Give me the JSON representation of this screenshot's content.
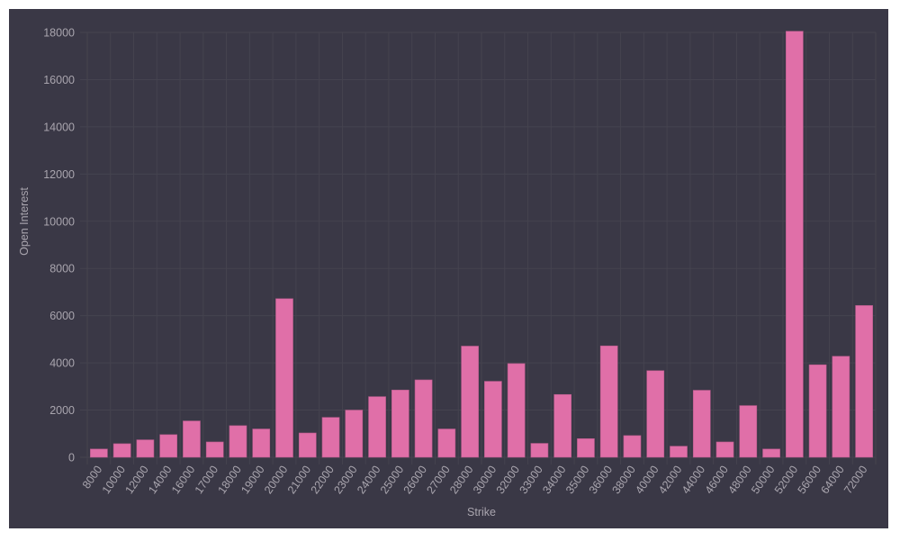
{
  "chart_data": {
    "type": "bar",
    "title": "",
    "xlabel": "Strike",
    "ylabel": "Open Interest",
    "ylim": [
      0,
      18000
    ],
    "yticks": [
      0,
      2000,
      4000,
      6000,
      8000,
      10000,
      12000,
      14000,
      16000,
      18000
    ],
    "grid": true,
    "legend": null,
    "categories": [
      "8000",
      "10000",
      "12000",
      "14000",
      "16000",
      "17000",
      "18000",
      "19000",
      "20000",
      "21000",
      "22000",
      "23000",
      "24000",
      "25000",
      "26000",
      "27000",
      "28000",
      "30000",
      "32000",
      "33000",
      "34000",
      "35000",
      "36000",
      "38000",
      "40000",
      "42000",
      "44000",
      "46000",
      "48000",
      "50000",
      "52000",
      "56000",
      "64000",
      "72000"
    ],
    "series": [
      {
        "name": "Open Interest",
        "color": "#e06fa8",
        "values": [
          350,
          575,
          740,
          960,
          1540,
          650,
          1340,
          1200,
          6720,
          1030,
          1690,
          2000,
          2570,
          2850,
          3280,
          1200,
          4710,
          3220,
          3970,
          590,
          2660,
          790,
          4720,
          920,
          3670,
          470,
          2840,
          650,
          2190,
          350,
          18050,
          3920,
          4280,
          6430
        ]
      }
    ]
  },
  "colors": {
    "background": "#3a3846",
    "bar": "#e06fa8",
    "grid": "#45434f",
    "text": "#a9a5ae"
  }
}
